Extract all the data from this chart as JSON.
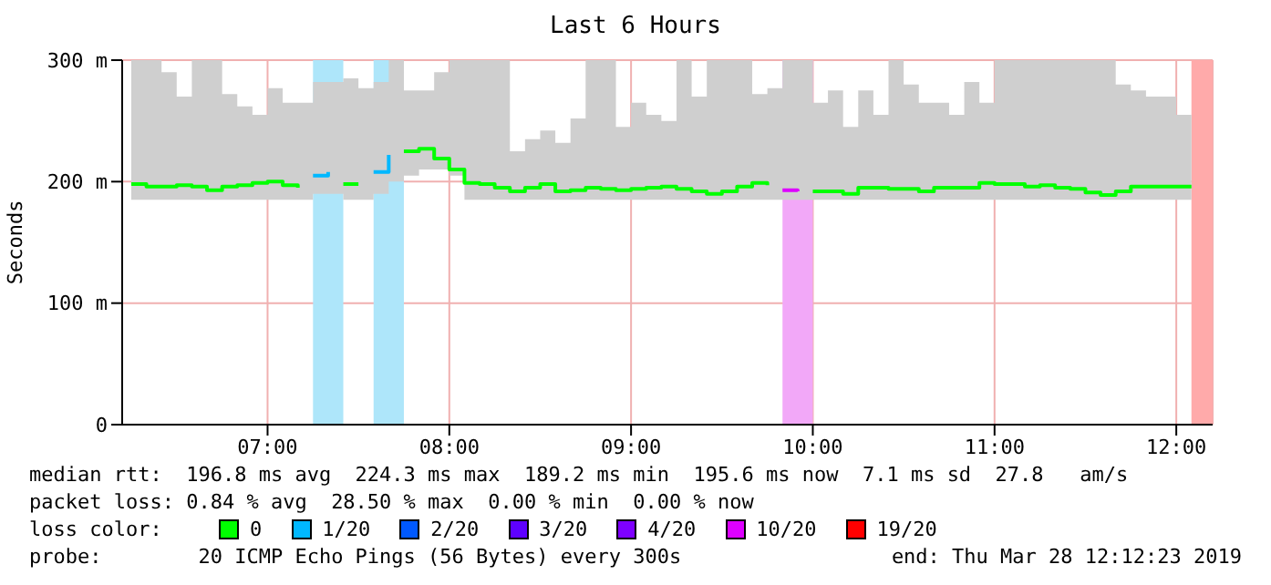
{
  "chart_data": {
    "type": "step",
    "title": "Last 6 Hours",
    "ylabel": "Seconds",
    "legend_title": "loss color:",
    "legend": "bottom",
    "grid": true,
    "xlim": [
      "2019-03-28T06:12",
      "2019-03-28T12:12"
    ],
    "xticks": [
      {
        "value": "2019-03-28T07:00",
        "label": "07:00"
      },
      {
        "value": "2019-03-28T08:00",
        "label": "08:00"
      },
      {
        "value": "2019-03-28T09:00",
        "label": "09:00"
      },
      {
        "value": "2019-03-28T10:00",
        "label": "10:00"
      },
      {
        "value": "2019-03-28T11:00",
        "label": "11:00"
      },
      {
        "value": "2019-03-28T12:00",
        "label": "12:00"
      }
    ],
    "ylim": [
      0,
      300
    ],
    "yticks": [
      0,
      {
        "value": 100,
        "label": "100 m"
      },
      {
        "value": 200,
        "label": "200 m"
      },
      {
        "value": 300,
        "label": "300 m"
      }
    ],
    "x": [
      "2019-03-28T06:15",
      "2019-03-28T06:20",
      "2019-03-28T06:25",
      "2019-03-28T06:30",
      "2019-03-28T06:35",
      "2019-03-28T06:40",
      "2019-03-28T06:45",
      "2019-03-28T06:50",
      "2019-03-28T06:55",
      "2019-03-28T07:00",
      "2019-03-28T07:05",
      "2019-03-28T07:10",
      "2019-03-28T07:15",
      "2019-03-28T07:20",
      "2019-03-28T07:25",
      "2019-03-28T07:30",
      "2019-03-28T07:35",
      "2019-03-28T07:40",
      "2019-03-28T07:45",
      "2019-03-28T07:50",
      "2019-03-28T07:55",
      "2019-03-28T08:00",
      "2019-03-28T08:05",
      "2019-03-28T08:10",
      "2019-03-28T08:15",
      "2019-03-28T08:20",
      "2019-03-28T08:25",
      "2019-03-28T08:30",
      "2019-03-28T08:35",
      "2019-03-28T08:40",
      "2019-03-28T08:45",
      "2019-03-28T08:50",
      "2019-03-28T08:55",
      "2019-03-28T09:00",
      "2019-03-28T09:05",
      "2019-03-28T09:10",
      "2019-03-28T09:15",
      "2019-03-28T09:20",
      "2019-03-28T09:25",
      "2019-03-28T09:30",
      "2019-03-28T09:35",
      "2019-03-28T09:40",
      "2019-03-28T09:45",
      "2019-03-28T09:50",
      "2019-03-28T09:55",
      "2019-03-28T10:00",
      "2019-03-28T10:05",
      "2019-03-28T10:10",
      "2019-03-28T10:15",
      "2019-03-28T10:20",
      "2019-03-28T10:25",
      "2019-03-28T10:30",
      "2019-03-28T10:35",
      "2019-03-28T10:40",
      "2019-03-28T10:45",
      "2019-03-28T10:50",
      "2019-03-28T10:55",
      "2019-03-28T11:00",
      "2019-03-28T11:05",
      "2019-03-28T11:10",
      "2019-03-28T11:15",
      "2019-03-28T11:20",
      "2019-03-28T11:25",
      "2019-03-28T11:30",
      "2019-03-28T11:35",
      "2019-03-28T11:40",
      "2019-03-28T11:45",
      "2019-03-28T11:50",
      "2019-03-28T11:55",
      "2019-03-28T12:00",
      "2019-03-28T12:05"
    ],
    "series": [
      {
        "name": "0",
        "color": "#00ff00",
        "values": [
          198,
          196,
          196,
          197,
          196,
          193,
          196,
          197,
          199,
          200,
          197,
          195,
          null,
          null,
          198,
          198,
          null,
          null,
          225,
          227,
          219,
          210,
          199,
          198,
          195,
          192,
          195,
          198,
          192,
          193,
          195,
          194,
          193,
          194,
          195,
          196,
          194,
          192,
          190,
          192,
          196,
          199,
          197,
          null,
          null,
          192,
          192,
          190,
          195,
          195,
          194,
          194,
          192,
          195,
          195,
          195,
          199,
          198,
          198,
          196,
          197,
          195,
          194,
          191,
          189,
          192,
          196,
          196,
          196,
          196,
          196
        ],
        "lower": [
          185,
          185,
          185,
          185,
          185,
          185,
          185,
          185,
          185,
          185,
          185,
          185,
          190,
          190,
          185,
          185,
          190,
          200,
          205,
          210,
          210,
          205,
          185,
          185,
          185,
          185,
          185,
          185,
          185,
          185,
          185,
          185,
          185,
          185,
          185,
          185,
          185,
          185,
          185,
          185,
          185,
          185,
          185,
          185,
          185,
          185,
          185,
          185,
          185,
          185,
          185,
          185,
          185,
          185,
          185,
          185,
          185,
          185,
          185,
          185,
          185,
          185,
          185,
          185,
          185,
          185,
          185,
          185,
          185,
          185,
          185
        ],
        "upper": [
          300,
          300,
          290,
          270,
          300,
          300,
          272,
          262,
          255,
          277,
          265,
          265,
          282,
          282,
          285,
          277,
          282,
          300,
          275,
          275,
          290,
          300,
          300,
          300,
          300,
          225,
          235,
          242,
          232,
          252,
          300,
          300,
          245,
          265,
          255,
          250,
          300,
          270,
          300,
          300,
          300,
          272,
          277,
          300,
          300,
          265,
          275,
          245,
          275,
          255,
          300,
          280,
          265,
          265,
          255,
          282,
          265,
          300,
          300,
          300,
          300,
          300,
          300,
          300,
          300,
          280,
          275,
          270,
          270,
          255,
          275
        ]
      },
      {
        "name": "1/20",
        "color": "#00b8ff",
        "values": [
          null,
          null,
          null,
          null,
          null,
          null,
          null,
          null,
          null,
          null,
          null,
          null,
          205,
          208,
          null,
          null,
          208,
          222,
          null,
          null,
          null,
          null,
          null,
          null,
          null,
          null,
          null,
          null,
          null,
          null,
          null,
          null,
          null,
          null,
          null,
          null,
          null,
          null,
          null,
          null,
          null,
          null,
          null,
          null,
          null,
          null,
          null,
          null,
          null,
          null,
          null,
          null,
          null,
          null,
          null,
          null,
          null,
          null,
          null,
          null,
          null,
          null,
          null,
          null,
          null,
          null,
          null,
          null,
          null,
          null,
          null
        ]
      },
      {
        "name": "2/20",
        "color": "#0059ff",
        "values": [
          null,
          null,
          null,
          null,
          null,
          null,
          null,
          null,
          null,
          null,
          null,
          null,
          null,
          null,
          null,
          null,
          null,
          null,
          null,
          null,
          null,
          null,
          null,
          null,
          null,
          null,
          null,
          null,
          null,
          null,
          null,
          null,
          null,
          null,
          null,
          null,
          null,
          null,
          null,
          null,
          null,
          null,
          null,
          null,
          null,
          null,
          null,
          null,
          null,
          null,
          null,
          null,
          null,
          null,
          null,
          null,
          null,
          null,
          null,
          null,
          null,
          null,
          null,
          null,
          null,
          null,
          null,
          null,
          null,
          null,
          null
        ]
      },
      {
        "name": "3/20",
        "color": "#5e00ff",
        "values": [
          null,
          null,
          null,
          null,
          null,
          null,
          null,
          null,
          null,
          null,
          null,
          null,
          null,
          null,
          null,
          null,
          null,
          null,
          null,
          null,
          null,
          null,
          null,
          null,
          null,
          null,
          null,
          null,
          null,
          null,
          null,
          null,
          null,
          null,
          null,
          null,
          null,
          null,
          null,
          null,
          null,
          null,
          null,
          null,
          null,
          null,
          null,
          null,
          null,
          null,
          null,
          null,
          null,
          null,
          null,
          null,
          null,
          null,
          null,
          null,
          null,
          null,
          null,
          null,
          null,
          null,
          null,
          null,
          null,
          null,
          null
        ]
      },
      {
        "name": "4/20",
        "color": "#7e00ff",
        "values": [
          null,
          null,
          null,
          null,
          null,
          null,
          null,
          null,
          null,
          null,
          null,
          null,
          null,
          null,
          null,
          null,
          null,
          null,
          null,
          null,
          null,
          null,
          null,
          null,
          null,
          null,
          null,
          null,
          null,
          null,
          null,
          null,
          null,
          null,
          null,
          null,
          null,
          null,
          null,
          null,
          null,
          null,
          null,
          null,
          null,
          null,
          null,
          null,
          null,
          null,
          null,
          null,
          null,
          null,
          null,
          null,
          null,
          null,
          null,
          null,
          null,
          null,
          null,
          null,
          null,
          null,
          null,
          null,
          null,
          null,
          null
        ]
      },
      {
        "name": "10/20",
        "color": "#dd00ff",
        "values": [
          null,
          null,
          null,
          null,
          null,
          null,
          null,
          null,
          null,
          null,
          null,
          null,
          null,
          null,
          null,
          null,
          null,
          null,
          null,
          null,
          null,
          null,
          null,
          null,
          null,
          null,
          null,
          null,
          null,
          null,
          null,
          null,
          null,
          null,
          null,
          null,
          null,
          null,
          null,
          null,
          null,
          null,
          null,
          193,
          192,
          null,
          null,
          null,
          null,
          null,
          null,
          null,
          null,
          null,
          null,
          null,
          null,
          null,
          null,
          null,
          null,
          null,
          null,
          null,
          null,
          null,
          null,
          null,
          null,
          null,
          null
        ]
      },
      {
        "name": "19/20",
        "color": "#ff0000",
        "values": [
          null,
          null,
          null,
          null,
          null,
          null,
          null,
          null,
          null,
          null,
          null,
          null,
          null,
          null,
          null,
          null,
          null,
          null,
          null,
          null,
          null,
          null,
          null,
          null,
          null,
          null,
          null,
          null,
          null,
          null,
          null,
          null,
          null,
          null,
          null,
          null,
          null,
          null,
          null,
          null,
          null,
          null,
          null,
          null,
          null,
          null,
          null,
          null,
          null,
          null,
          null,
          null,
          null,
          null,
          null,
          null,
          null,
          null,
          null,
          null,
          null,
          null,
          null,
          null,
          null,
          null,
          null,
          null,
          null,
          null,
          null
        ]
      }
    ],
    "bands": [
      {
        "axis": "x",
        "from": "2019-03-28T07:15",
        "to": "2019-03-28T07:25",
        "color": "#aee6fa"
      },
      {
        "axis": "x",
        "from": "2019-03-28T07:35",
        "to": "2019-03-28T07:45",
        "color": "#aee6fa"
      },
      {
        "axis": "x",
        "from": "2019-03-28T09:50",
        "to": "2019-03-28T10:00",
        "color": "#f2a8f8"
      },
      {
        "axis": "x",
        "from": "2019-03-28T12:05",
        "to": "2019-03-28T12:12",
        "color": "#ffaaaa"
      }
    ],
    "annotations": [
      "median rtt:  196.8 ms avg  224.3 ms max  189.2 ms min  195.6 ms now  7.1 ms sd  27.8   am/s",
      "packet loss: 0.84 % avg  28.50 % max  0.00 % min  0.00 % now",
      "probe:        20 ICMP Echo Pings (56 Bytes) every 300s",
      "end: Thu Mar 28 12:12:23 2019"
    ]
  }
}
